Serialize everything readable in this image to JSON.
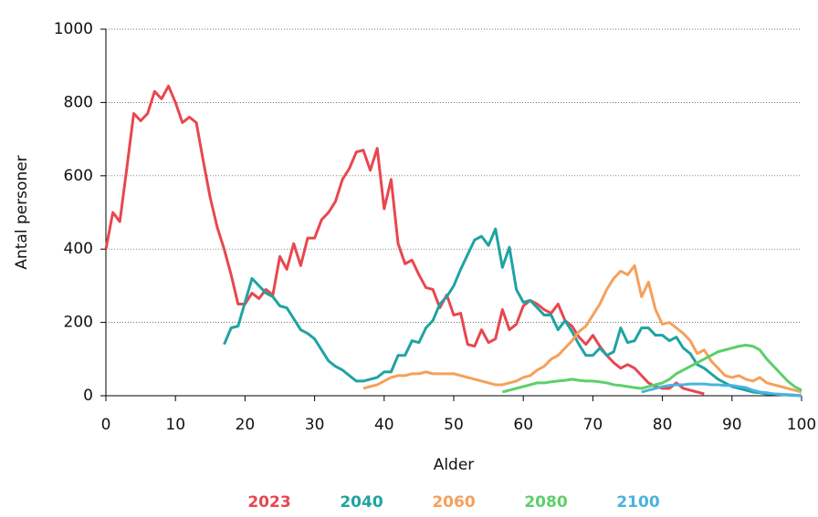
{
  "chart_data": {
    "type": "line",
    "x_label": "Alder",
    "y_label": "Antal personer",
    "x": [
      0,
      1,
      2,
      3,
      4,
      5,
      6,
      7,
      8,
      9,
      10,
      11,
      12,
      13,
      14,
      15,
      16,
      17,
      18,
      19,
      20,
      21,
      22,
      23,
      24,
      25,
      26,
      27,
      28,
      29,
      30,
      31,
      32,
      33,
      34,
      35,
      36,
      37,
      38,
      39,
      40,
      41,
      42,
      43,
      44,
      45,
      46,
      47,
      48,
      49,
      50,
      51,
      52,
      53,
      54,
      55,
      56,
      57,
      58,
      59,
      60,
      61,
      62,
      63,
      64,
      65,
      66,
      67,
      68,
      69,
      70,
      71,
      72,
      73,
      74,
      75,
      76,
      77,
      78,
      79,
      80,
      81,
      82,
      83,
      84,
      85,
      86,
      87,
      88,
      89,
      90,
      91,
      92,
      93,
      94,
      95,
      96,
      97,
      98,
      99,
      100
    ],
    "series": [
      {
        "name": "2023",
        "color": "#e8474f",
        "values": [
          400,
          500,
          475,
          620,
          770,
          750,
          770,
          830,
          810,
          845,
          800,
          745,
          760,
          745,
          640,
          540,
          460,
          400,
          330,
          250,
          250,
          280,
          265,
          290,
          275,
          380,
          345,
          415,
          355,
          430,
          430,
          480,
          500,
          530,
          590,
          620,
          665,
          670,
          615,
          675,
          510,
          590,
          415,
          360,
          370,
          330,
          295,
          290,
          240,
          275,
          220,
          225,
          140,
          135,
          180,
          145,
          155,
          235,
          180,
          195,
          245,
          260,
          250,
          235,
          225,
          250,
          205,
          190,
          160,
          140,
          165,
          135,
          110,
          90,
          75,
          85,
          75,
          55,
          35,
          25,
          20,
          20,
          35,
          20,
          15,
          10,
          5,
          null,
          null,
          null,
          null,
          null,
          null,
          null,
          null,
          null,
          null,
          null,
          null,
          null,
          null
        ]
      },
      {
        "name": "2040",
        "color": "#1fa3a3",
        "values": [
          null,
          null,
          null,
          null,
          null,
          null,
          null,
          null,
          null,
          null,
          null,
          null,
          null,
          null,
          null,
          null,
          null,
          140,
          185,
          190,
          255,
          320,
          300,
          280,
          270,
          245,
          240,
          210,
          180,
          170,
          155,
          125,
          95,
          80,
          70,
          55,
          40,
          40,
          45,
          50,
          65,
          65,
          110,
          110,
          150,
          145,
          185,
          205,
          250,
          270,
          300,
          345,
          385,
          425,
          435,
          410,
          455,
          350,
          405,
          290,
          255,
          260,
          240,
          220,
          220,
          180,
          205,
          175,
          140,
          110,
          110,
          130,
          110,
          120,
          185,
          145,
          150,
          185,
          185,
          165,
          165,
          150,
          160,
          130,
          115,
          85,
          75,
          60,
          45,
          35,
          25,
          20,
          15,
          10,
          8,
          5,
          5,
          3,
          2,
          1,
          0
        ]
      },
      {
        "name": "2060",
        "color": "#f5a05a",
        "values": [
          null,
          null,
          null,
          null,
          null,
          null,
          null,
          null,
          null,
          null,
          null,
          null,
          null,
          null,
          null,
          null,
          null,
          null,
          null,
          null,
          null,
          null,
          null,
          null,
          null,
          null,
          null,
          null,
          null,
          null,
          null,
          null,
          null,
          null,
          null,
          null,
          null,
          20,
          25,
          30,
          40,
          50,
          55,
          55,
          60,
          60,
          65,
          60,
          60,
          60,
          60,
          55,
          50,
          45,
          40,
          35,
          30,
          30,
          35,
          40,
          50,
          55,
          70,
          80,
          100,
          110,
          130,
          150,
          175,
          190,
          220,
          250,
          290,
          320,
          340,
          330,
          355,
          270,
          310,
          235,
          195,
          200,
          185,
          170,
          150,
          115,
          125,
          95,
          75,
          55,
          50,
          55,
          45,
          40,
          50,
          35,
          30,
          25,
          20,
          15,
          10
        ]
      },
      {
        "name": "2080",
        "color": "#5ccf6a",
        "values": [
          null,
          null,
          null,
          null,
          null,
          null,
          null,
          null,
          null,
          null,
          null,
          null,
          null,
          null,
          null,
          null,
          null,
          null,
          null,
          null,
          null,
          null,
          null,
          null,
          null,
          null,
          null,
          null,
          null,
          null,
          null,
          null,
          null,
          null,
          null,
          null,
          null,
          null,
          null,
          null,
          null,
          null,
          null,
          null,
          null,
          null,
          null,
          null,
          null,
          null,
          null,
          null,
          null,
          null,
          null,
          null,
          null,
          10,
          15,
          20,
          25,
          30,
          35,
          35,
          38,
          40,
          42,
          45,
          42,
          40,
          40,
          38,
          35,
          30,
          28,
          25,
          22,
          20,
          25,
          30,
          35,
          45,
          60,
          70,
          80,
          90,
          100,
          110,
          120,
          125,
          130,
          135,
          138,
          135,
          125,
          100,
          80,
          60,
          40,
          25,
          15
        ]
      },
      {
        "name": "2100",
        "color": "#4ab3e0",
        "values": [
          null,
          null,
          null,
          null,
          null,
          null,
          null,
          null,
          null,
          null,
          null,
          null,
          null,
          null,
          null,
          null,
          null,
          null,
          null,
          null,
          null,
          null,
          null,
          null,
          null,
          null,
          null,
          null,
          null,
          null,
          null,
          null,
          null,
          null,
          null,
          null,
          null,
          null,
          null,
          null,
          null,
          null,
          null,
          null,
          null,
          null,
          null,
          null,
          null,
          null,
          null,
          null,
          null,
          null,
          null,
          null,
          null,
          null,
          null,
          null,
          null,
          null,
          null,
          null,
          null,
          null,
          null,
          null,
          null,
          null,
          null,
          null,
          null,
          null,
          null,
          null,
          null,
          10,
          15,
          20,
          25,
          28,
          30,
          30,
          32,
          32,
          32,
          30,
          30,
          28,
          28,
          25,
          22,
          15,
          10,
          8,
          5,
          4,
          3,
          2,
          1
        ]
      }
    ],
    "xlim": [
      0,
      100
    ],
    "xticks": [
      0,
      10,
      20,
      30,
      40,
      50,
      60,
      70,
      80,
      90,
      100
    ],
    "ylim": [
      0,
      1000
    ],
    "yticks": [
      0,
      200,
      400,
      600,
      800,
      1000
    ],
    "grid": true,
    "legend": "bottom"
  }
}
